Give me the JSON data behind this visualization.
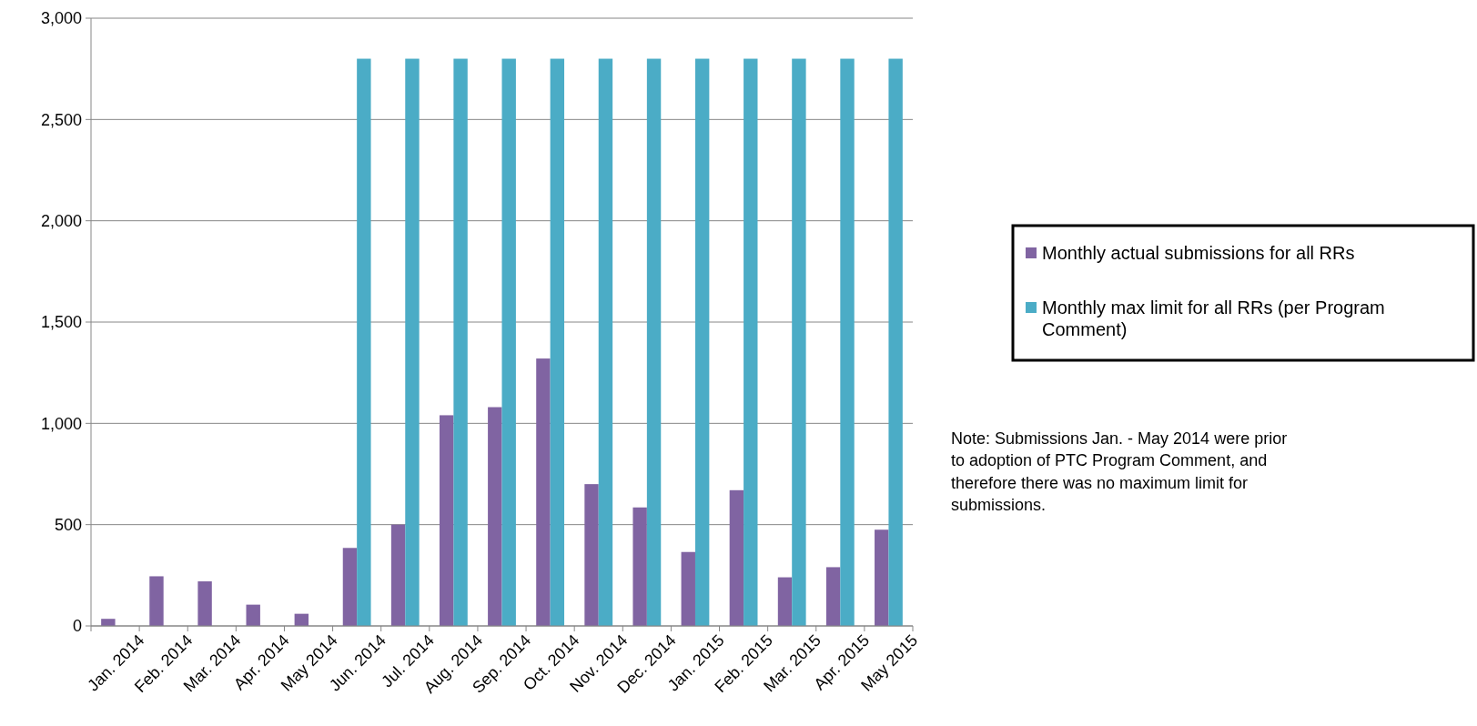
{
  "chart_data": {
    "type": "bar",
    "categories": [
      "Jan. 2014",
      "Feb. 2014",
      "Mar. 2014",
      "Apr. 2014",
      "May 2014",
      "Jun. 2014",
      "Jul. 2014",
      "Aug. 2014",
      "Sep. 2014",
      "Oct. 2014",
      "Nov. 2014",
      "Dec. 2014",
      "Jan. 2015",
      "Feb. 2015",
      "Mar. 2015",
      "Apr. 2015",
      "May 2015"
    ],
    "series": [
      {
        "name": "Monthly actual submissions for all RRs",
        "color": "#8064a2",
        "values": [
          35,
          245,
          220,
          105,
          60,
          385,
          500,
          1040,
          1080,
          1320,
          700,
          585,
          365,
          670,
          240,
          290,
          475
        ]
      },
      {
        "name": "Monthly max limit for all RRs (per Program Comment)",
        "color": "#4bacc6",
        "values": [
          null,
          null,
          null,
          null,
          null,
          2800,
          2800,
          2800,
          2800,
          2800,
          2800,
          2800,
          2800,
          2800,
          2800,
          2800,
          2800
        ]
      }
    ],
    "ylim": [
      0,
      3000
    ],
    "yticks": [
      {
        "value": 0,
        "label": "0"
      },
      {
        "value": 500,
        "label": "500"
      },
      {
        "value": 1000,
        "label": "1,000"
      },
      {
        "value": 1500,
        "label": "1,500"
      },
      {
        "value": 2000,
        "label": "2,000"
      },
      {
        "value": 2500,
        "label": "2,500"
      },
      {
        "value": 3000,
        "label": "3,000"
      }
    ],
    "grid": "y",
    "legend": "right",
    "annotations": [
      "Note: Submissions Jan.  - May 2014 were prior to adoption of PTC Program Comment, and therefore there was no maximum limit for submissions."
    ]
  }
}
